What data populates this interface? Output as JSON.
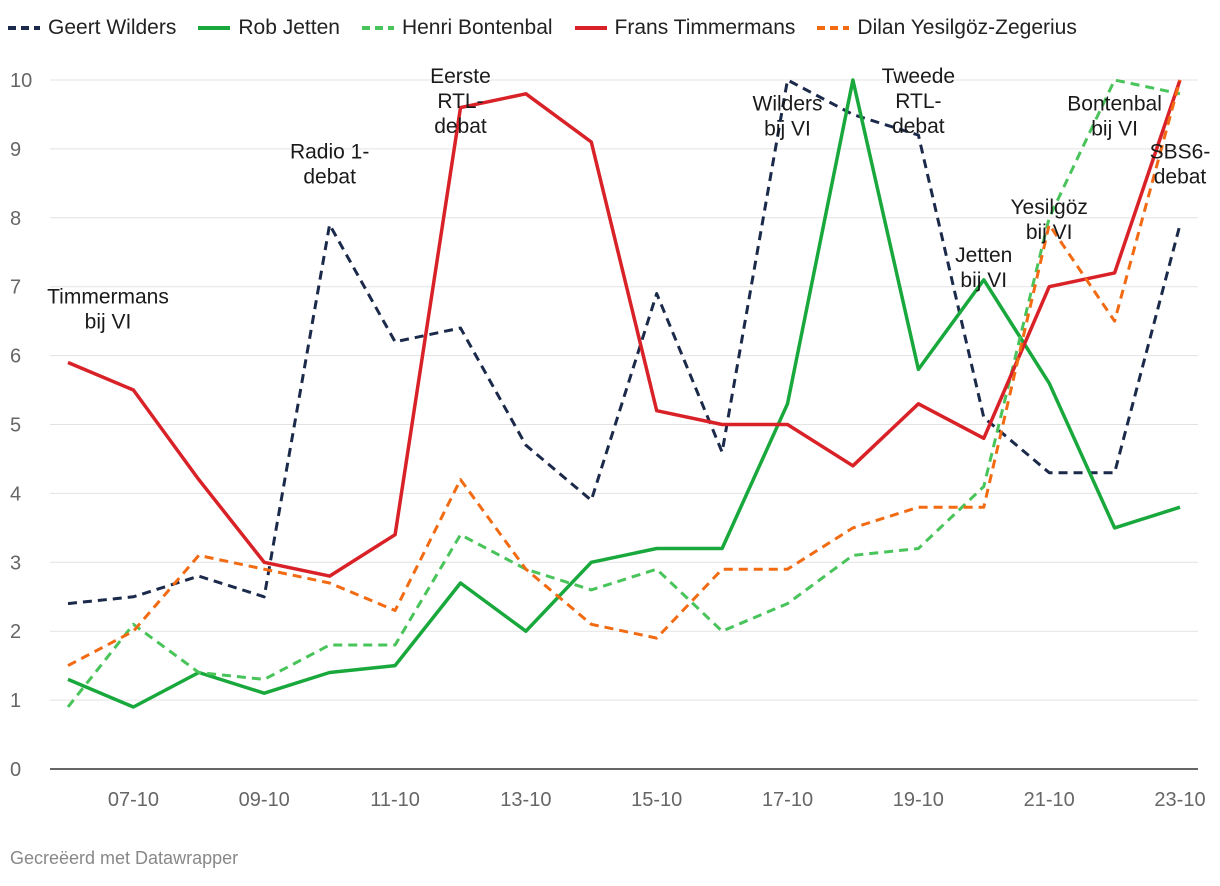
{
  "credit": "Gecreëerd met Datawrapper",
  "chart_data": {
    "type": "line",
    "title": "",
    "xlabel": "",
    "ylabel": "",
    "ylim": [
      0,
      10
    ],
    "yticks": [
      0,
      1,
      2,
      3,
      4,
      5,
      6,
      7,
      8,
      9,
      10
    ],
    "grid": "horizontal",
    "legend_position": "top",
    "x": [
      "06-10",
      "07-10",
      "08-10",
      "09-10",
      "10-10",
      "11-10",
      "12-10",
      "13-10",
      "14-10",
      "15-10",
      "16-10",
      "17-10",
      "18-10",
      "19-10",
      "20-10",
      "21-10",
      "22-10",
      "23-10"
    ],
    "xtick_labels": [
      "07-10",
      "09-10",
      "11-10",
      "13-10",
      "15-10",
      "17-10",
      "19-10",
      "21-10",
      "23-10"
    ],
    "series": [
      {
        "name": "Geert Wilders",
        "color": "#1b2a4a",
        "dash": "dashed",
        "values": [
          2.4,
          2.5,
          2.8,
          2.5,
          7.9,
          6.2,
          6.4,
          4.7,
          3.9,
          6.9,
          4.6,
          10.0,
          9.5,
          9.2,
          5.1,
          4.3,
          4.3,
          7.9
        ]
      },
      {
        "name": "Rob Jetten",
        "color": "#19a83c",
        "dash": "solid",
        "values": [
          1.3,
          0.9,
          1.4,
          1.1,
          1.4,
          1.5,
          2.7,
          2.0,
          3.0,
          3.2,
          3.2,
          5.3,
          10.0,
          5.8,
          7.1,
          5.6,
          3.5,
          3.8
        ]
      },
      {
        "name": "Henri Bontenbal",
        "color": "#49c45a",
        "dash": "dashed",
        "values": [
          0.9,
          2.1,
          1.4,
          1.3,
          1.8,
          1.8,
          3.4,
          2.9,
          2.6,
          2.9,
          2.0,
          2.4,
          3.1,
          3.2,
          4.1,
          8.0,
          10.0,
          9.8
        ]
      },
      {
        "name": "Frans Timmermans",
        "color": "#d92228",
        "dash": "solid",
        "values": [
          5.9,
          5.5,
          4.2,
          3.0,
          2.8,
          3.4,
          9.6,
          9.8,
          9.1,
          5.2,
          5.0,
          5.0,
          4.4,
          5.3,
          4.8,
          7.0,
          7.2,
          10.0
        ]
      },
      {
        "name": "Dilan Yesilgöz-Zegerius",
        "color": "#f26b12",
        "dash": "dashed",
        "values": [
          1.5,
          2.0,
          3.1,
          2.9,
          2.7,
          2.3,
          4.2,
          2.9,
          2.1,
          1.9,
          2.9,
          2.9,
          3.5,
          3.8,
          3.8,
          7.9,
          6.5,
          10.0
        ]
      }
    ],
    "annotations": [
      {
        "lines": [
          "Timmermans",
          "bij VI"
        ],
        "x": "06-10",
        "y": 6.7
      },
      {
        "lines": [
          "Radio 1-",
          "debat"
        ],
        "x": "10-10",
        "y": 8.8
      },
      {
        "lines": [
          "Eerste",
          "RTL-",
          "debat"
        ],
        "x": "12-10",
        "y": 9.9
      },
      {
        "lines": [
          "Wilders",
          "bij VI"
        ],
        "x": "17-10",
        "y": 9.5
      },
      {
        "lines": [
          "Tweede",
          "RTL-",
          "debat"
        ],
        "x": "19-10",
        "y": 9.9
      },
      {
        "lines": [
          "Jetten",
          "bij VI"
        ],
        "x": "20-10",
        "y": 7.3
      },
      {
        "lines": [
          "Yesilgöz",
          "bij VI"
        ],
        "x": "21-10",
        "y": 8.0
      },
      {
        "lines": [
          "Bontenbal",
          "bij VI"
        ],
        "x": "22-10",
        "y": 9.5
      },
      {
        "lines": [
          "SBS6-",
          "debat"
        ],
        "x": "23-10",
        "y": 8.8
      }
    ]
  }
}
